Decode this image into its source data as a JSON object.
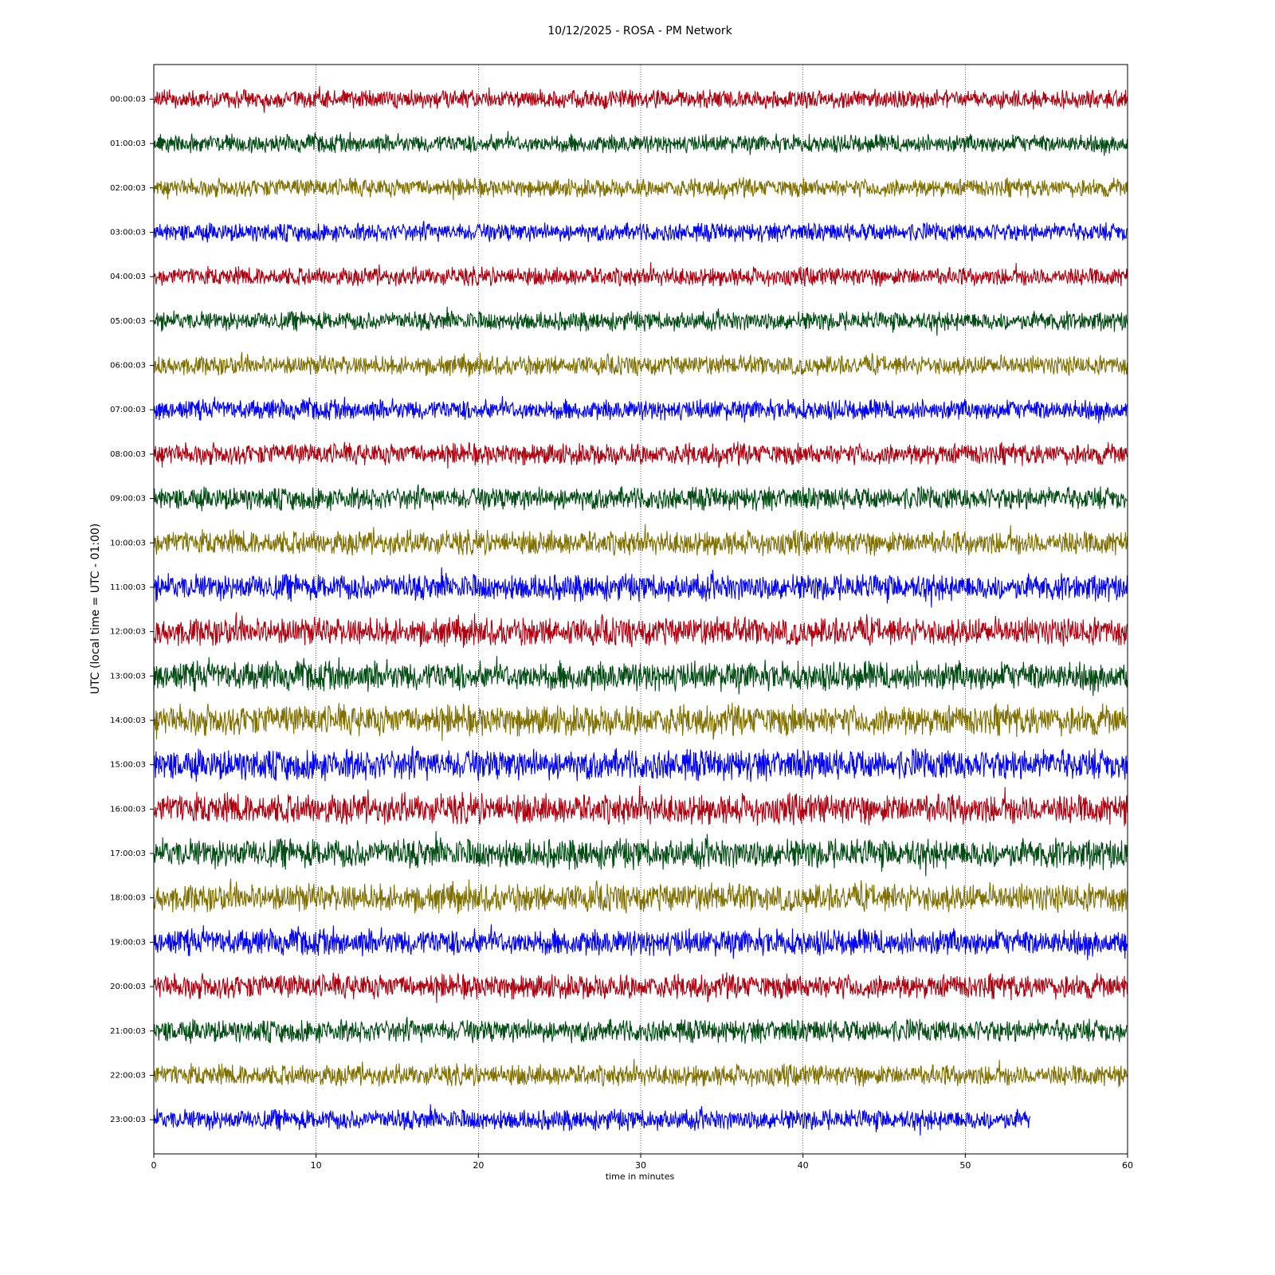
{
  "chart_data": {
    "type": "helicorder",
    "title": "10/12/2025 - ROSA - PM Network",
    "xlabel": "time in minutes",
    "ylabel": "UTC (local time = UTC - 01:00)",
    "xlim": [
      0,
      60
    ],
    "xticks": [
      0,
      10,
      20,
      30,
      40,
      50,
      60
    ],
    "grid": true,
    "rows": [
      {
        "label": "00:00:03",
        "color": "#b0000f",
        "end": 60
      },
      {
        "label": "01:00:03",
        "color": "#004c12",
        "end": 60
      },
      {
        "label": "02:00:03",
        "color": "#807000",
        "end": 60
      },
      {
        "label": "03:00:03",
        "color": "#0000ff",
        "end": 60
      },
      {
        "label": "04:00:03",
        "color": "#b0000f",
        "end": 60
      },
      {
        "label": "05:00:03",
        "color": "#004c12",
        "end": 60
      },
      {
        "label": "06:00:03",
        "color": "#807000",
        "end": 60
      },
      {
        "label": "07:00:03",
        "color": "#0000ff",
        "end": 60
      },
      {
        "label": "08:00:03",
        "color": "#b0000f",
        "end": 60
      },
      {
        "label": "09:00:03",
        "color": "#004c12",
        "end": 60
      },
      {
        "label": "10:00:03",
        "color": "#807000",
        "end": 60
      },
      {
        "label": "11:00:03",
        "color": "#0000ff",
        "end": 60
      },
      {
        "label": "12:00:03",
        "color": "#b0000f",
        "end": 60
      },
      {
        "label": "13:00:03",
        "color": "#004c12",
        "end": 60
      },
      {
        "label": "14:00:03",
        "color": "#807000",
        "end": 60
      },
      {
        "label": "15:00:03",
        "color": "#0000ff",
        "end": 60
      },
      {
        "label": "16:00:03",
        "color": "#b0000f",
        "end": 60
      },
      {
        "label": "17:00:03",
        "color": "#004c12",
        "end": 60
      },
      {
        "label": "18:00:03",
        "color": "#807000",
        "end": 60
      },
      {
        "label": "19:00:03",
        "color": "#0000ff",
        "end": 60
      },
      {
        "label": "20:00:03",
        "color": "#b0000f",
        "end": 60
      },
      {
        "label": "21:00:03",
        "color": "#004c12",
        "end": 60
      },
      {
        "label": "22:00:03",
        "color": "#807000",
        "end": 60
      },
      {
        "label": "23:00:03",
        "color": "#0000ff",
        "end": 54
      }
    ]
  }
}
